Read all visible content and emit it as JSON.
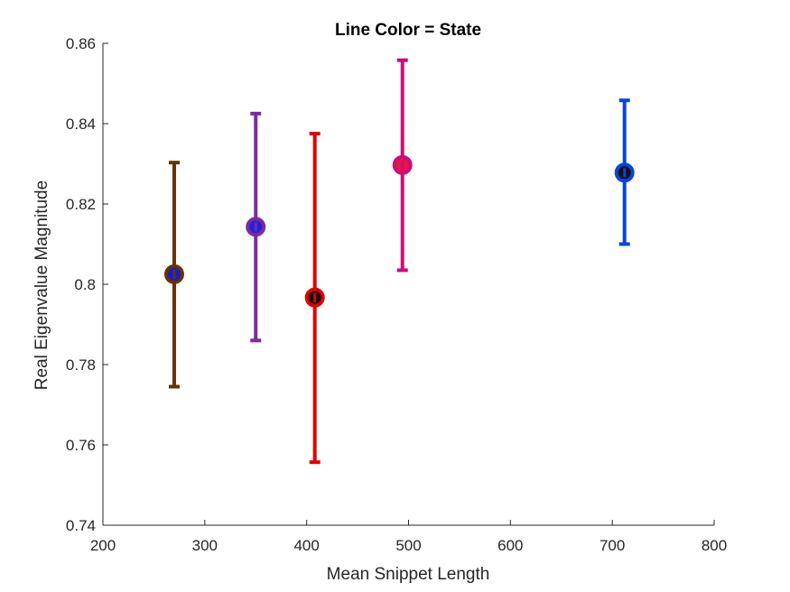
{
  "chart_data": {
    "type": "scatter",
    "title": "Line Color = State",
    "xlabel": "Mean Snippet Length",
    "ylabel": "Real Eigenvalue Magnitude",
    "xlim": [
      200,
      800
    ],
    "ylim": [
      0.74,
      0.86
    ],
    "xticks": [
      "200",
      "300",
      "400",
      "500",
      "600",
      "700",
      "800"
    ],
    "yticks": [
      "0.74",
      "0.76",
      "0.78",
      "0.8",
      "0.82",
      "0.84",
      "0.86"
    ],
    "grid": false,
    "legend": "none",
    "points": [
      {
        "x": 270,
        "y": 0.8025,
        "lower": 0.7745,
        "upper": 0.8303,
        "line_color": "#663300",
        "marker_color": "#1a1acc"
      },
      {
        "x": 350,
        "y": 0.8143,
        "lower": 0.786,
        "upper": 0.8425,
        "line_color": "#7a2aa3",
        "marker_color": "#2222dd"
      },
      {
        "x": 408,
        "y": 0.7967,
        "lower": 0.7557,
        "upper": 0.8375,
        "line_color": "#e00000",
        "marker_color": "#111111"
      },
      {
        "x": 494,
        "y": 0.8297,
        "lower": 0.8035,
        "upper": 0.8558,
        "line_color": "#c8107a",
        "marker_color": "#ee1144"
      },
      {
        "x": 712,
        "y": 0.8278,
        "lower": 0.81,
        "upper": 0.8458,
        "line_color": "#0a44d8",
        "marker_color": "#111111"
      }
    ]
  }
}
